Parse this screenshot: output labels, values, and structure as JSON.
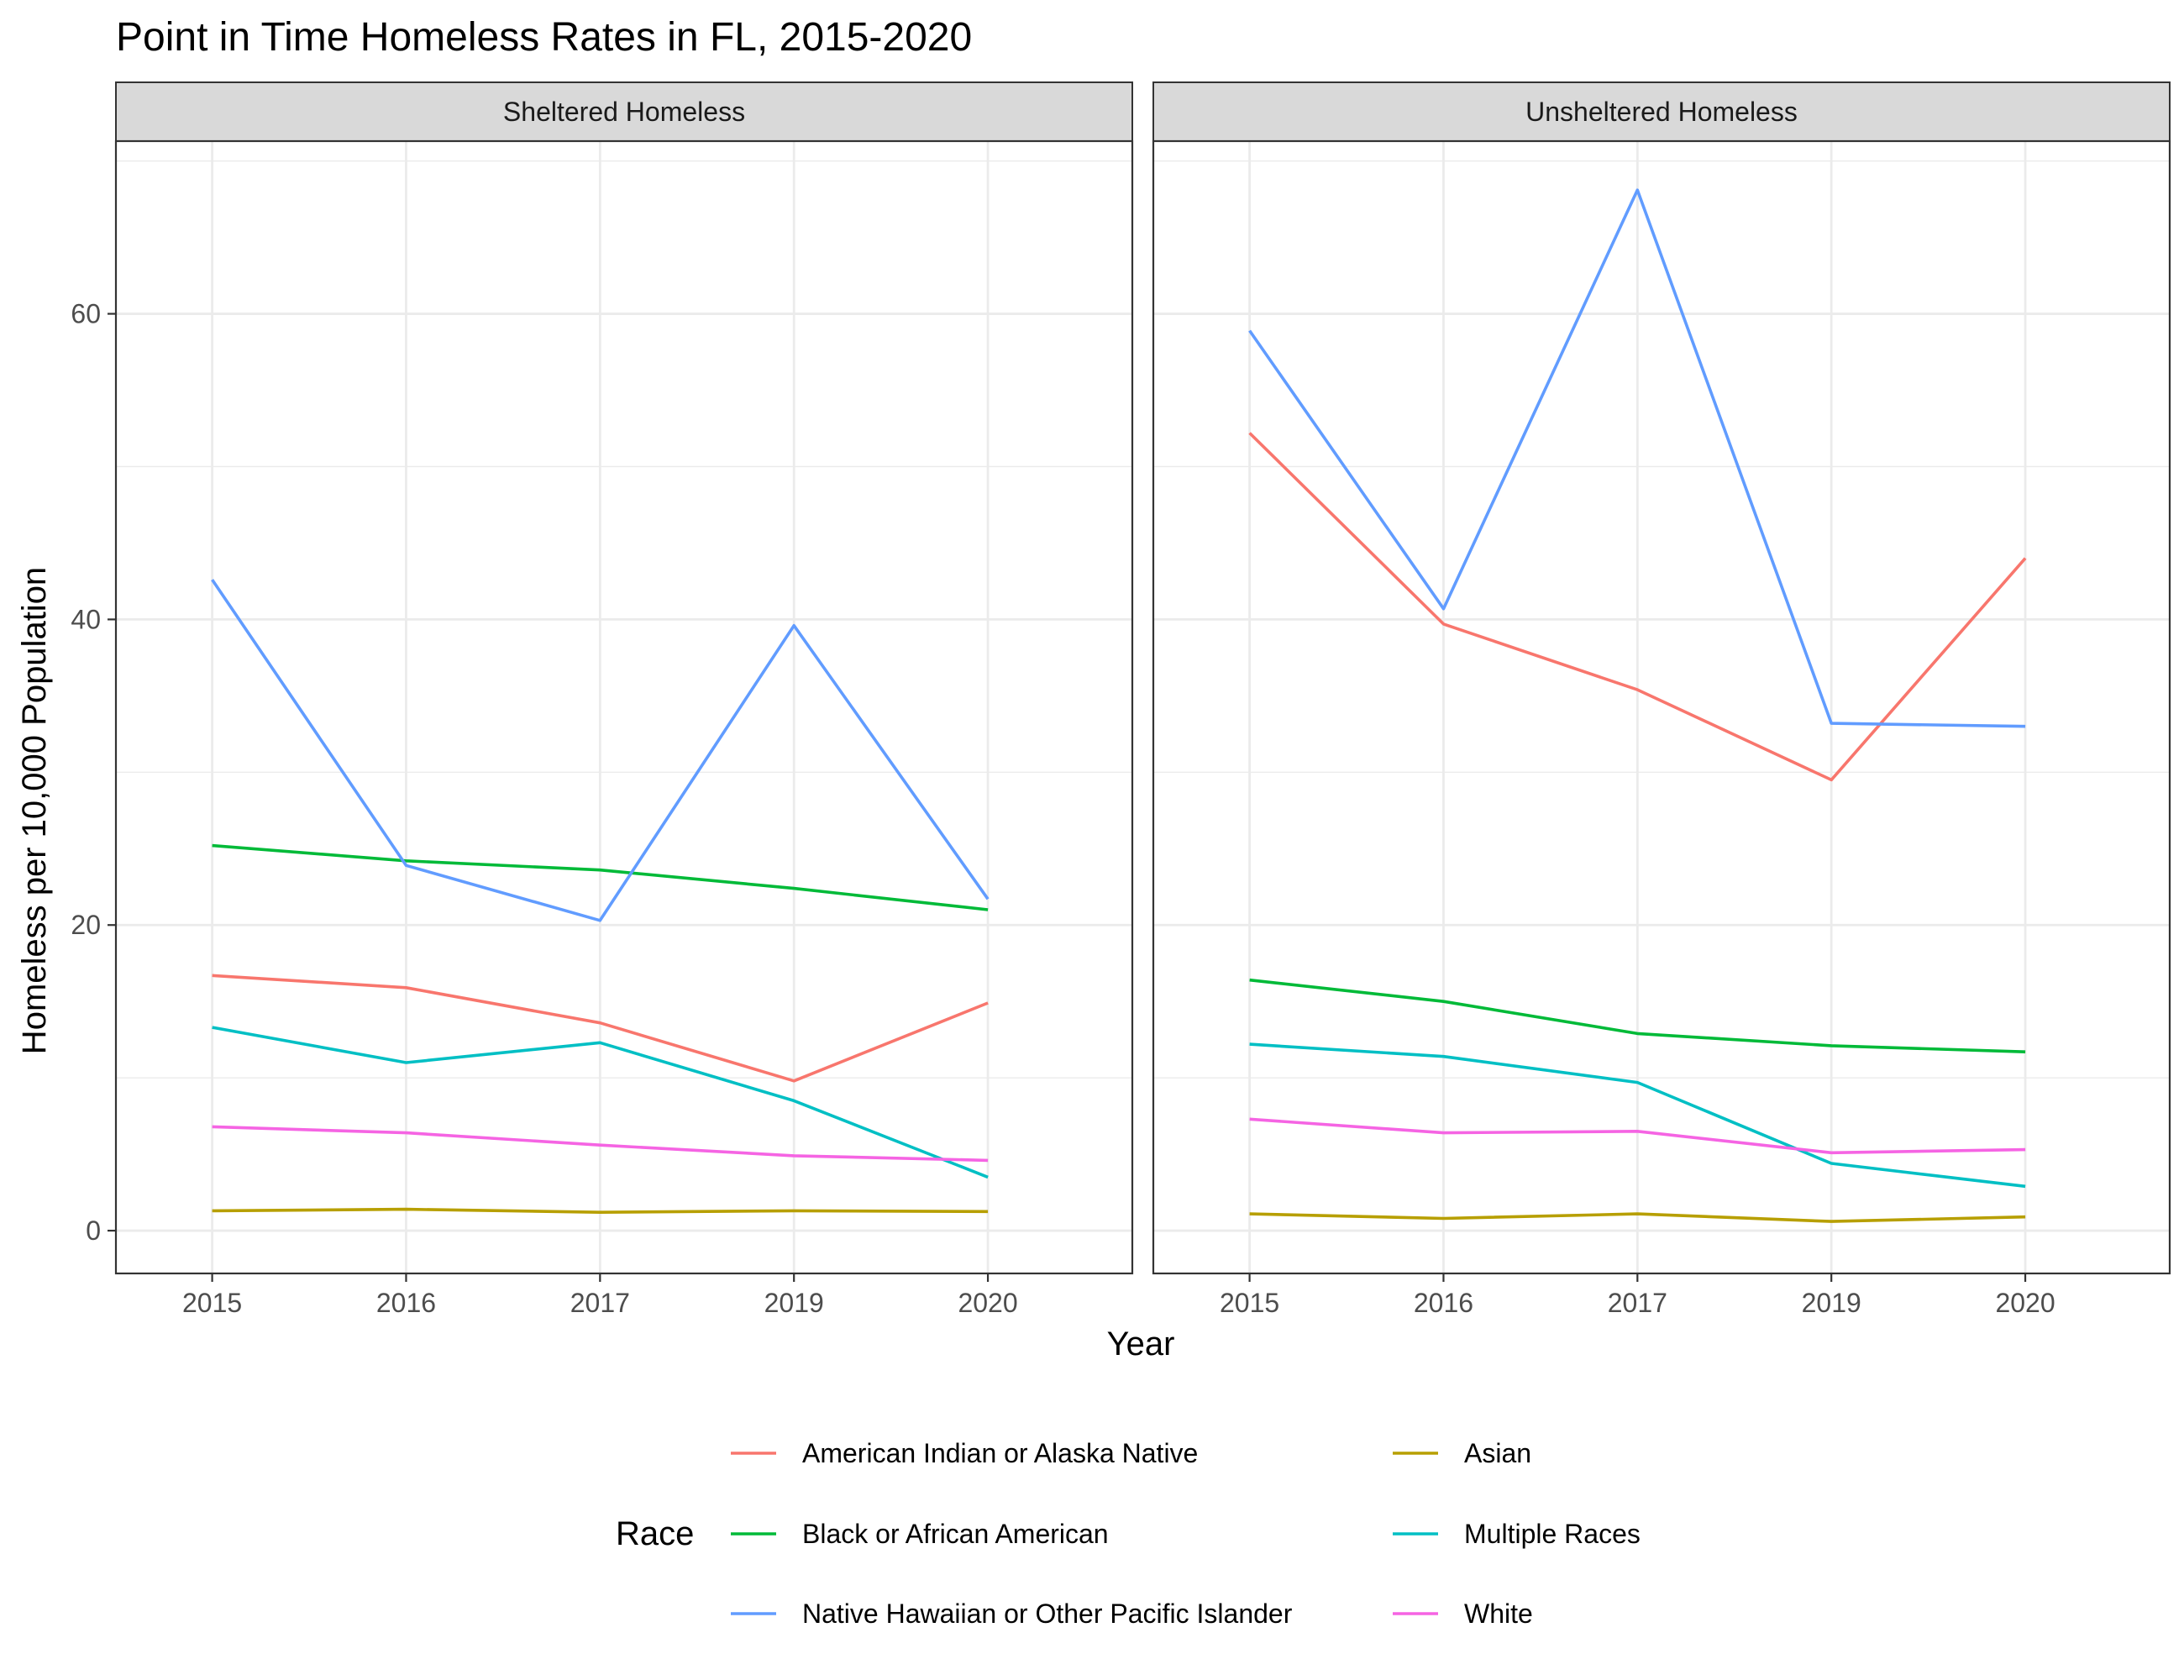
{
  "chart_data": {
    "type": "line",
    "title": "Point in Time Homeless Rates in FL, 2015-2020",
    "xlabel": "Year",
    "ylabel": "Homeless per 10,000 Population",
    "categories": [
      "2015",
      "2016",
      "2017",
      "2019",
      "2020"
    ],
    "ylim": [
      -2.8,
      71.3
    ],
    "yticks": [
      0,
      20,
      40,
      60
    ],
    "grid": true,
    "legend": {
      "title": "Race",
      "position": "bottom",
      "entries": [
        "American Indian or Alaska Native",
        "Asian",
        "Black or African American",
        "Multiple Races",
        "Native Hawaiian or Other Pacific Islander",
        "White"
      ]
    },
    "colors": {
      "American Indian or Alaska Native": "#F8766D",
      "Asian": "#B79F00",
      "Black or African American": "#00BA38",
      "Multiple Races": "#00BFC4",
      "Native Hawaiian or Other Pacific Islander": "#619CFF",
      "White": "#F564E3"
    },
    "panels": [
      {
        "name": "Sheltered Homeless",
        "series": [
          {
            "name": "American Indian or Alaska Native",
            "values": [
              16.7,
              15.9,
              13.6,
              9.8,
              14.9
            ]
          },
          {
            "name": "Asian",
            "values": [
              1.3,
              1.4,
              1.2,
              1.3,
              1.25
            ]
          },
          {
            "name": "Black or African American",
            "values": [
              25.2,
              24.2,
              23.6,
              22.4,
              21.0
            ]
          },
          {
            "name": "Multiple Races",
            "values": [
              13.3,
              11.0,
              12.3,
              8.5,
              3.5
            ]
          },
          {
            "name": "Native Hawaiian or Other Pacific Islander",
            "values": [
              42.6,
              23.9,
              20.3,
              39.6,
              21.7
            ]
          },
          {
            "name": "White",
            "values": [
              6.8,
              6.4,
              5.6,
              4.9,
              4.6
            ]
          }
        ]
      },
      {
        "name": "Unsheltered Homeless",
        "series": [
          {
            "name": "American Indian or Alaska Native",
            "values": [
              52.2,
              39.7,
              35.4,
              29.5,
              44.0
            ]
          },
          {
            "name": "Asian",
            "values": [
              1.1,
              0.8,
              1.1,
              0.6,
              0.9
            ]
          },
          {
            "name": "Black or African American",
            "values": [
              16.4,
              15.0,
              12.9,
              12.1,
              11.7
            ]
          },
          {
            "name": "Multiple Races",
            "values": [
              12.2,
              11.4,
              9.7,
              4.4,
              2.9
            ]
          },
          {
            "name": "Native Hawaiian or Other Pacific Islander",
            "values": [
              58.9,
              40.7,
              68.1,
              33.2,
              33.0
            ]
          },
          {
            "name": "White",
            "values": [
              7.3,
              6.4,
              6.5,
              5.1,
              5.3
            ]
          }
        ]
      }
    ]
  }
}
